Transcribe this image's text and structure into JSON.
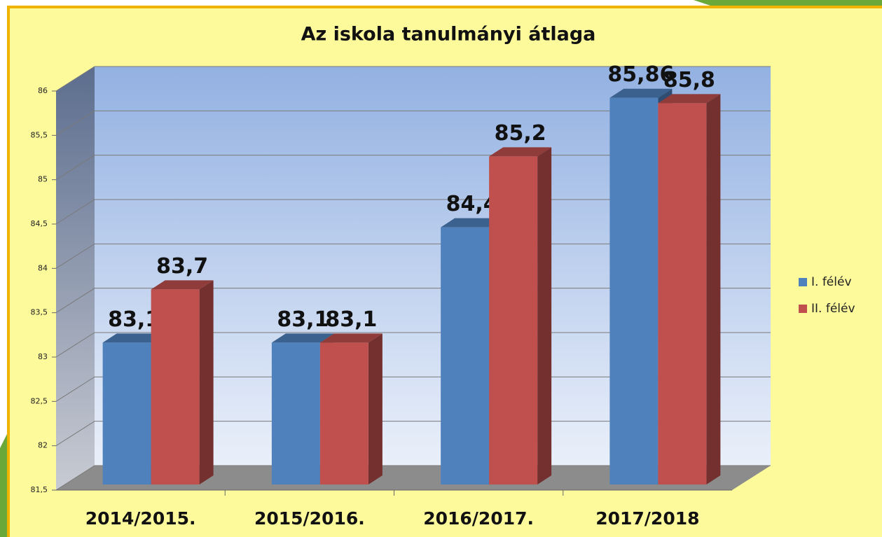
{
  "chart_data": {
    "type": "bar3d",
    "title": "Az iskola tanulmányi átlaga",
    "categories": [
      "2014/2015.",
      "2015/2016.",
      "2016/2017.",
      "2017/2018"
    ],
    "series": [
      {
        "name": "I. félév",
        "color": "#4f81bd",
        "values": [
          83.1,
          83.1,
          84.4,
          85.86
        ],
        "value_labels": [
          "83,1",
          "83,1",
          "84,4",
          "85,86"
        ]
      },
      {
        "name": "II. félév",
        "color": "#c0504d",
        "values": [
          83.7,
          83.1,
          85.2,
          85.8
        ],
        "value_labels": [
          "83,7",
          "83,1",
          "85,2",
          "85,8"
        ]
      }
    ],
    "ylim": [
      81.5,
      86
    ],
    "yticks": [
      {
        "value": 81.5,
        "label": "81,5"
      },
      82,
      {
        "value": 82.5,
        "label": "82,5"
      },
      83,
      {
        "value": 83.5,
        "label": "83,5"
      },
      84,
      {
        "value": 84.5,
        "label": "84,5"
      },
      85,
      {
        "value": 85.5,
        "label": "85,5"
      },
      86
    ],
    "grid": true,
    "legend": "right"
  }
}
